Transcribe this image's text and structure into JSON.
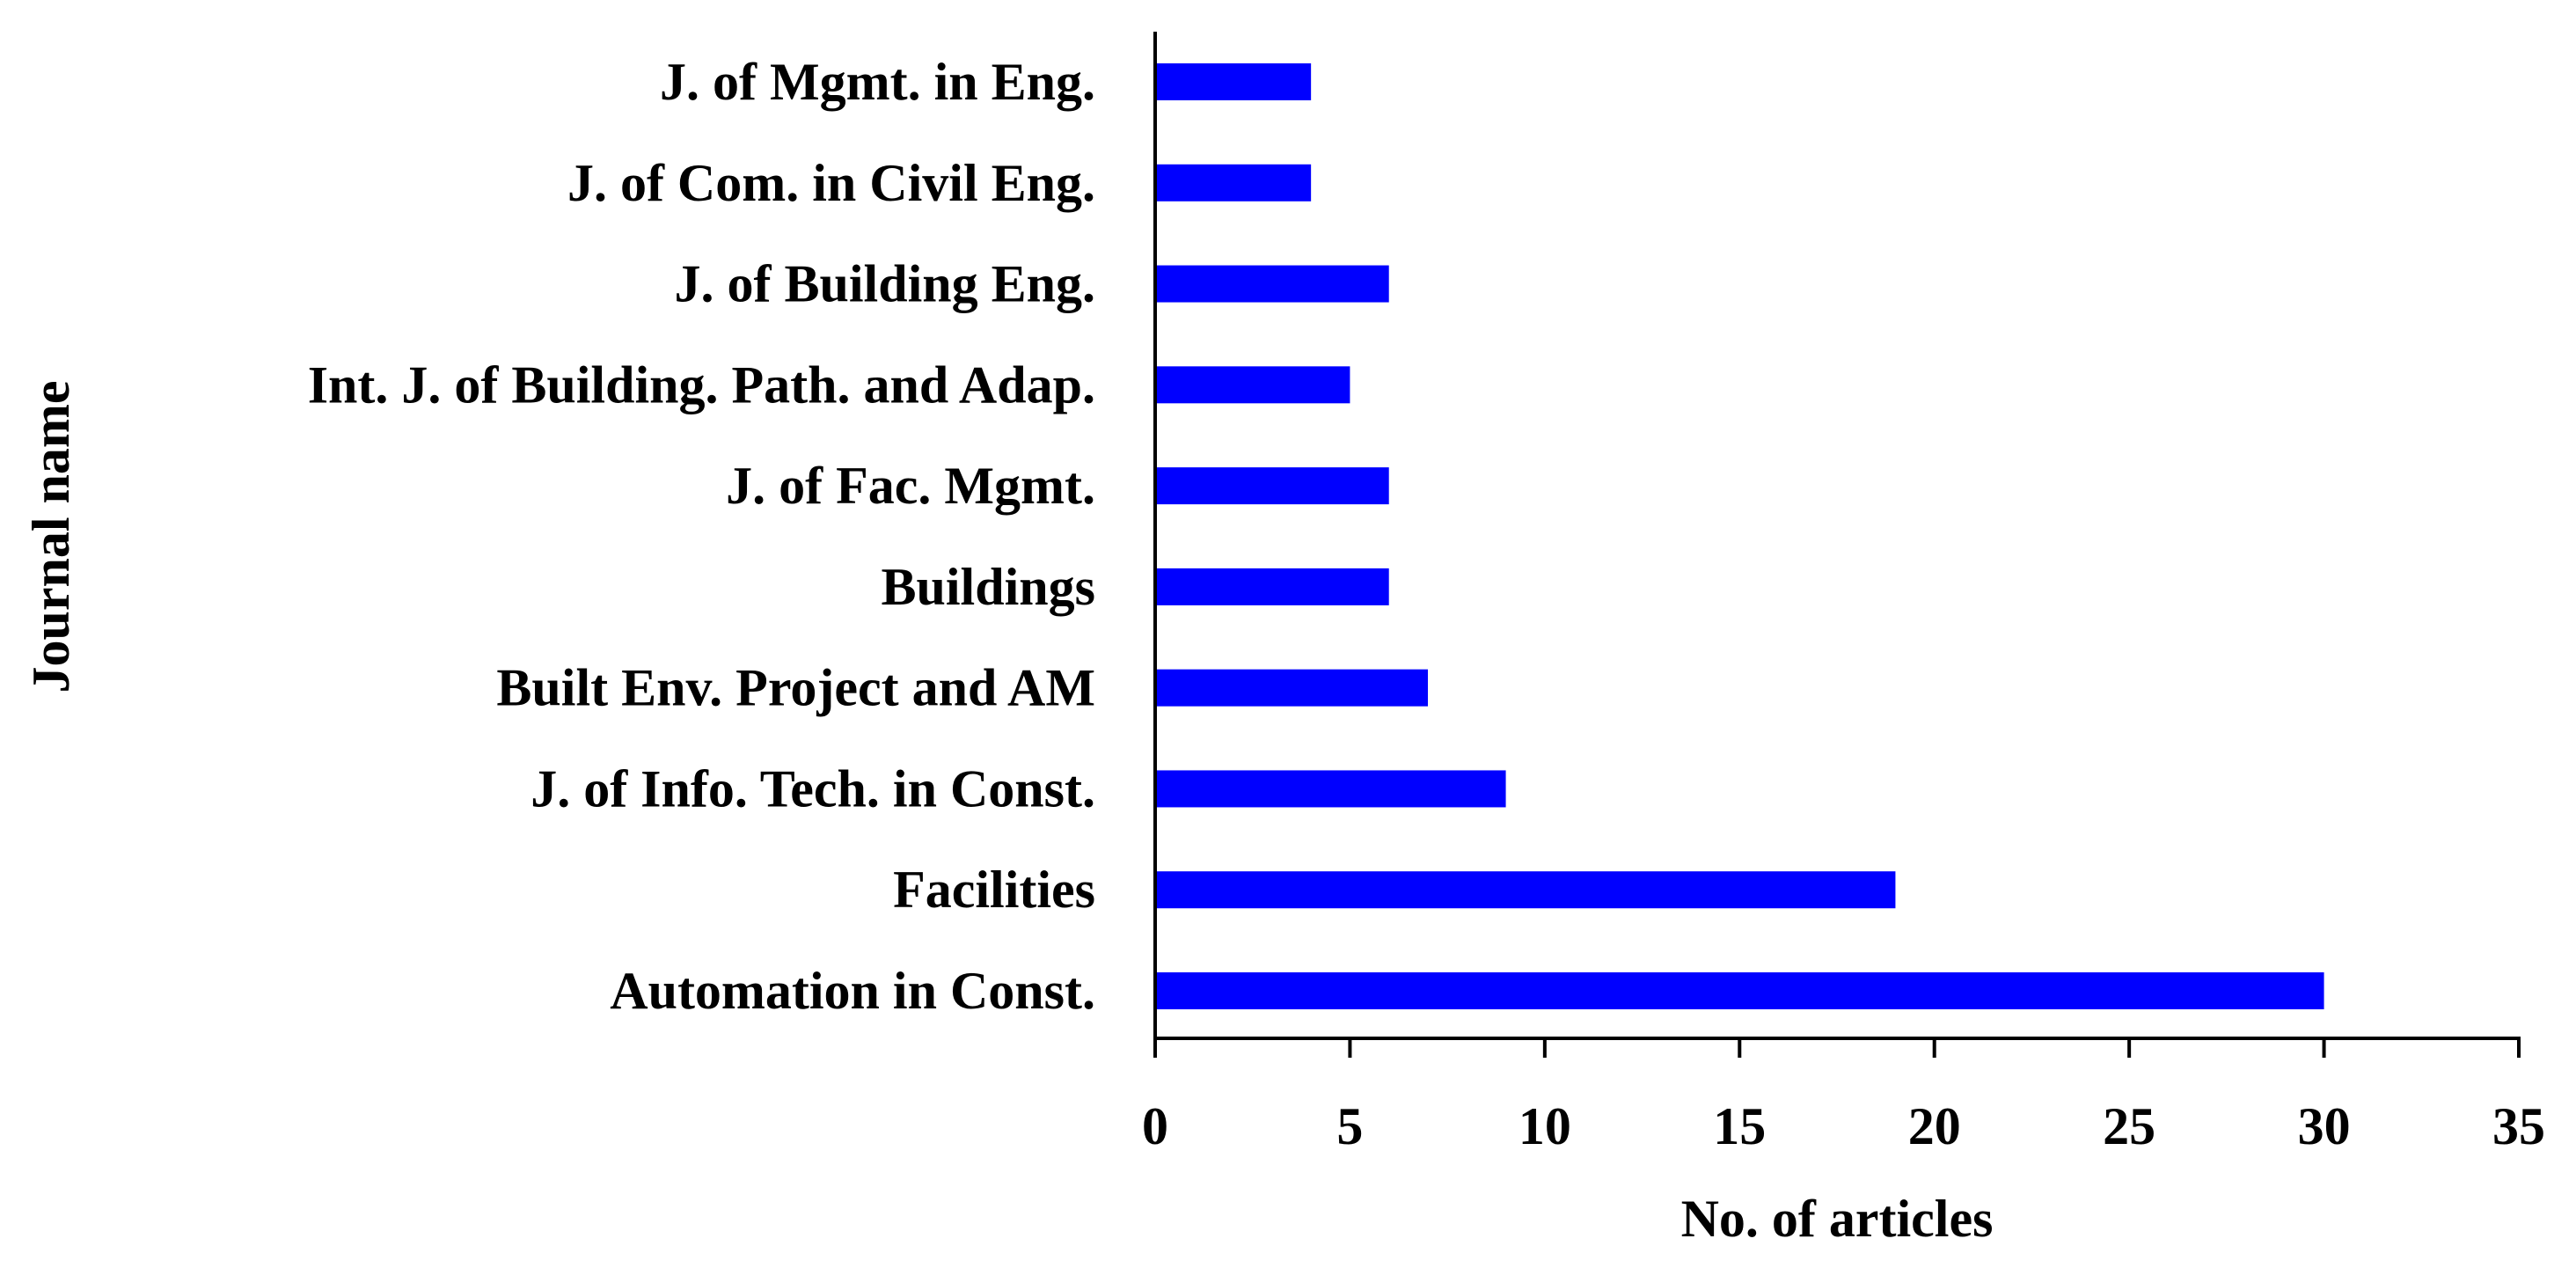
{
  "chart_data": {
    "type": "bar",
    "orientation": "horizontal",
    "categories": [
      "J. of Mgmt. in Eng.",
      "J. of Com. in Civil Eng.",
      "J. of Building Eng.",
      "Int. J. of Building. Path. and Adap.",
      "J. of Fac. Mgmt.",
      "Buildings",
      "Built Env. Project and AM",
      "J. of Info. Tech. in Const.",
      "Facilities",
      "Automation in Const."
    ],
    "values": [
      4,
      4,
      6,
      5,
      6,
      6,
      7,
      9,
      19,
      30
    ],
    "xlabel": "No. of articles",
    "ylabel": "Journal name",
    "xlim": [
      0,
      35
    ],
    "xticks": [
      0,
      5,
      10,
      15,
      20,
      25,
      30,
      35
    ],
    "grid": false,
    "legend": "none",
    "bar_color": "#0000FF",
    "axis_color": "#000000"
  }
}
